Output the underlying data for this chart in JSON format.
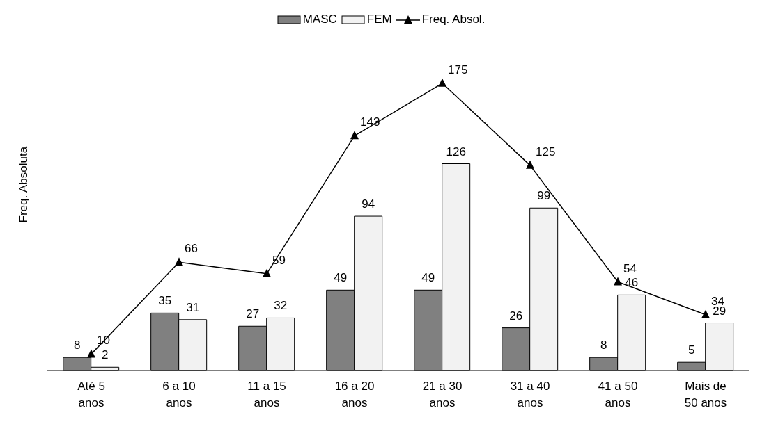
{
  "chart_data": {
    "type": "bar",
    "ylabel": "Freq. Absoluta",
    "categories": [
      "Até 5 anos",
      "6 a 10 anos",
      "11 a 15 anos",
      "16 a 20 anos",
      "21 a 30 anos",
      "31 a 40 anos",
      "41 a 50 anos",
      "Mais de 50 anos"
    ],
    "series": [
      {
        "name": "MASC",
        "color": "#808080",
        "values": [
          8,
          35,
          27,
          49,
          49,
          26,
          8,
          5
        ]
      },
      {
        "name": "FEM",
        "color": "#f2f2f2",
        "values": [
          2,
          31,
          32,
          94,
          126,
          99,
          46,
          29
        ]
      },
      {
        "name": "Freq. Absol.",
        "type": "line",
        "color": "#000000",
        "marker": "triangle",
        "values": [
          10,
          66,
          59,
          143,
          175,
          125,
          54,
          34
        ]
      }
    ],
    "data_labels": true,
    "legend": "top",
    "grid": false
  }
}
